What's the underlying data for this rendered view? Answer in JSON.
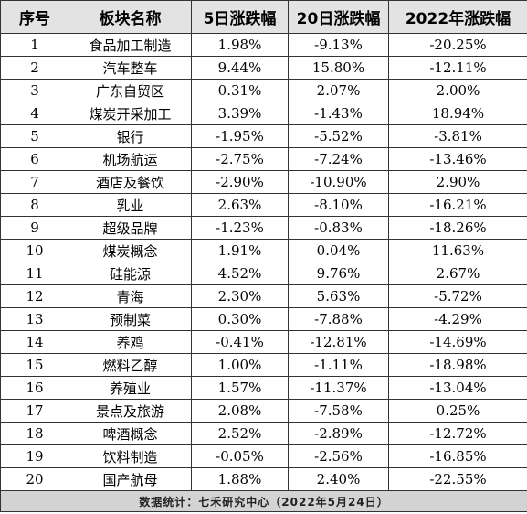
{
  "table": {
    "headers": [
      "序号",
      "板块名称",
      "5日涨跌幅",
      "20日涨跌幅",
      "2022年涨跌幅"
    ],
    "rows": [
      [
        "1",
        "食品加工制造",
        "1.98%",
        "-9.13%",
        "-20.25%"
      ],
      [
        "2",
        "汽车整车",
        "9.44%",
        "15.80%",
        "-12.11%"
      ],
      [
        "3",
        "广东自贸区",
        "0.31%",
        "2.07%",
        "2.00%"
      ],
      [
        "4",
        "煤炭开采加工",
        "3.39%",
        "-1.43%",
        "18.94%"
      ],
      [
        "5",
        "银行",
        "-1.95%",
        "-5.52%",
        "-3.81%"
      ],
      [
        "6",
        "机场航运",
        "-2.75%",
        "-7.24%",
        "-13.46%"
      ],
      [
        "7",
        "酒店及餐饮",
        "-2.90%",
        "-10.90%",
        "2.90%"
      ],
      [
        "8",
        "乳业",
        "2.63%",
        "-8.10%",
        "-16.21%"
      ],
      [
        "9",
        "超级品牌",
        "-1.23%",
        "-0.83%",
        "-18.26%"
      ],
      [
        "10",
        "煤炭概念",
        "1.91%",
        "0.04%",
        "11.63%"
      ],
      [
        "11",
        "硅能源",
        "4.52%",
        "9.76%",
        "2.67%"
      ],
      [
        "12",
        "青海",
        "2.30%",
        "5.63%",
        "-5.72%"
      ],
      [
        "13",
        "预制菜",
        "0.30%",
        "-7.88%",
        "-4.29%"
      ],
      [
        "14",
        "养鸡",
        "-0.41%",
        "-12.81%",
        "-14.69%"
      ],
      [
        "15",
        "燃料乙醇",
        "1.00%",
        "-1.11%",
        "-18.98%"
      ],
      [
        "16",
        "养殖业",
        "1.57%",
        "-11.37%",
        "-13.04%"
      ],
      [
        "17",
        "景点及旅游",
        "2.08%",
        "-7.58%",
        "0.25%"
      ],
      [
        "18",
        "啤酒概念",
        "2.52%",
        "-2.89%",
        "-12.72%"
      ],
      [
        "19",
        "饮料制造",
        "-0.05%",
        "-2.56%",
        "-16.85%"
      ],
      [
        "20",
        "国产航母",
        "1.88%",
        "2.40%",
        "-22.55%"
      ]
    ],
    "footer": "数据统计：七禾研究中心（2022年5月24日）"
  },
  "colors": {
    "header_bg": "#e3e3e3",
    "footer_bg": "#d3d3d3",
    "border": "#333333"
  }
}
